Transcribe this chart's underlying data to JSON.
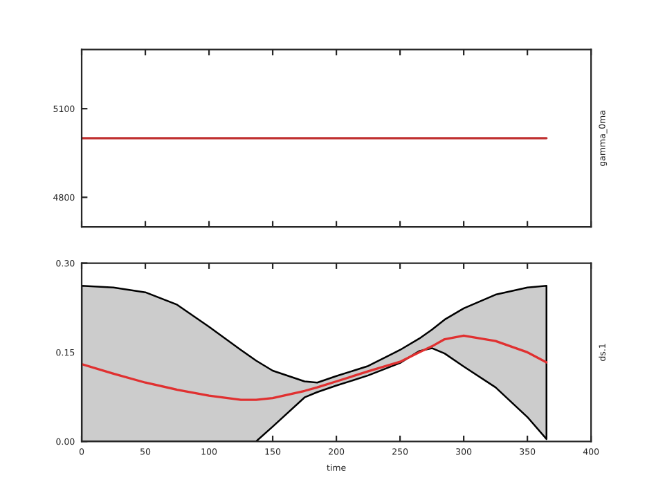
{
  "chart_data": [
    {
      "type": "line",
      "y2label": "gamma_0ma",
      "x": [
        0,
        365
      ],
      "xlim": [
        0,
        400
      ],
      "xticks": [
        0,
        50,
        100,
        150,
        200,
        250,
        300,
        350,
        400
      ],
      "ylim": [
        4700,
        5300
      ],
      "yticks": [
        4800,
        5100
      ],
      "tick_labels": "y",
      "grid": false,
      "legend": false,
      "series": [
        {
          "color": "#c03030",
          "values": [
            5000,
            5000
          ]
        }
      ]
    },
    {
      "type": "line",
      "xlabel": "time",
      "y2label": "ds.1",
      "xlim": [
        0,
        400
      ],
      "xticks": [
        0,
        50,
        100,
        150,
        200,
        250,
        300,
        350,
        400
      ],
      "ylim": [
        0,
        0.3
      ],
      "yticks": [
        {
          "value": 0,
          "label": "0.00"
        },
        {
          "value": 0.15,
          "label": "0.15"
        },
        {
          "value": 0.3,
          "label": "0.30"
        }
      ],
      "grid": false,
      "legend": false,
      "x": [
        0,
        25,
        50,
        75,
        100,
        125,
        137,
        150,
        175,
        185,
        200,
        225,
        250,
        265,
        275,
        285,
        300,
        325,
        350,
        365
      ],
      "series": [
        {
          "color": "#e03030",
          "values": [
            0.13,
            0.114,
            0.099,
            0.087,
            0.077,
            0.07,
            0.07,
            0.073,
            0.085,
            0.091,
            0.101,
            0.118,
            0.134,
            0.15,
            0.16,
            0.172,
            0.178,
            0.169,
            0.15,
            0.133
          ],
          "upper": [
            0.262,
            0.259,
            0.251,
            0.23,
            0.193,
            0.154,
            0.136,
            0.119,
            0.101,
            0.099,
            0.11,
            0.127,
            0.154,
            0.173,
            0.188,
            0.205,
            0.224,
            0.247,
            0.259,
            0.262
          ],
          "lower": [
            0,
            0,
            0,
            0,
            0,
            0,
            0,
            0.025,
            0.074,
            0.083,
            0.094,
            0.111,
            0.132,
            0.152,
            0.157,
            0.148,
            0.126,
            0.091,
            0.041,
            0.004
          ]
        }
      ]
    }
  ]
}
